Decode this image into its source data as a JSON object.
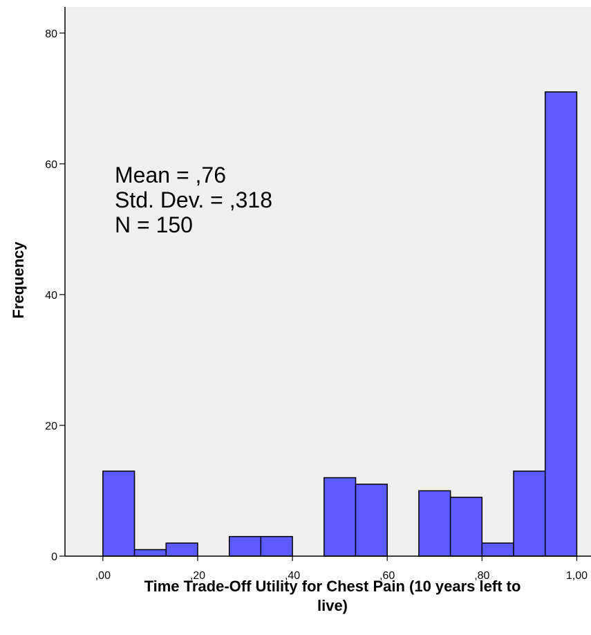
{
  "chart_data": {
    "type": "bar",
    "title": "",
    "xlabel_lines": [
      "Time Trade-Off Utility for Chest Pain (10 years left to",
      "live)"
    ],
    "ylabel": "Frequency",
    "xlim": [
      -0.08,
      1.03
    ],
    "ylim": [
      0,
      84
    ],
    "x_ticks": [
      0.0,
      0.2,
      0.4,
      0.6,
      0.8,
      1.0
    ],
    "x_tick_labels": [
      ",00",
      ",20",
      ",40",
      ",60",
      ",80",
      "1,00"
    ],
    "y_ticks": [
      0,
      20,
      40,
      60,
      80
    ],
    "y_tick_labels": [
      "0",
      "20",
      "40",
      "60",
      "80"
    ],
    "bin_width": 0.0667,
    "bins": [
      {
        "start": 0.0,
        "count": 13
      },
      {
        "start": 0.0667,
        "count": 1
      },
      {
        "start": 0.1333,
        "count": 2
      },
      {
        "start": 0.2,
        "count": 0
      },
      {
        "start": 0.2667,
        "count": 3
      },
      {
        "start": 0.3333,
        "count": 3
      },
      {
        "start": 0.4,
        "count": 0
      },
      {
        "start": 0.4667,
        "count": 12
      },
      {
        "start": 0.5333,
        "count": 11
      },
      {
        "start": 0.6,
        "count": 0
      },
      {
        "start": 0.6667,
        "count": 10
      },
      {
        "start": 0.7333,
        "count": 9
      },
      {
        "start": 0.8,
        "count": 2
      },
      {
        "start": 0.8667,
        "count": 13
      },
      {
        "start": 0.9333,
        "count": 71
      }
    ],
    "stats": [
      "Mean = ,76",
      "Std. Dev. = ,318",
      "N = 150"
    ],
    "grid": false,
    "colors": {
      "bar_fill": "#5b5bff",
      "bar_stroke": "#000000",
      "plot_background": "#f0f0f0"
    }
  }
}
